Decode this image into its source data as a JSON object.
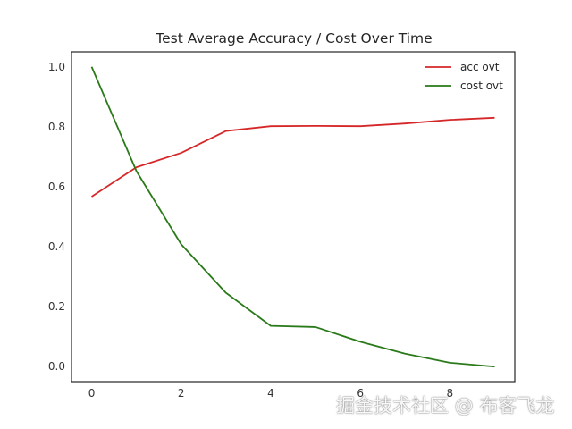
{
  "chart_data": {
    "type": "line",
    "title": "Test Average Accuracy / Cost Over Time",
    "xlabel": "",
    "ylabel": "",
    "x": [
      0,
      1,
      2,
      3,
      4,
      5,
      6,
      7,
      8,
      9
    ],
    "series": [
      {
        "name": "acc ovt",
        "color": "#d62728",
        "values": [
          0.567,
          0.665,
          0.713,
          0.786,
          0.802,
          0.803,
          0.802,
          0.811,
          0.823,
          0.83
        ]
      },
      {
        "name": "cost ovt",
        "color": "#2a7a1a",
        "values": [
          1.0,
          0.652,
          0.408,
          0.246,
          0.136,
          0.132,
          0.083,
          0.043,
          0.013,
          0.0
        ]
      }
    ],
    "xlim": [
      -0.45,
      9.45
    ],
    "ylim": [
      -0.05,
      1.05
    ],
    "xticks": [
      0,
      2,
      4,
      6,
      8
    ],
    "yticks": [
      0.0,
      0.2,
      0.4,
      0.6,
      0.8,
      1.0
    ],
    "ytick_labels": [
      "0.0",
      "0.2",
      "0.4",
      "0.6",
      "0.8",
      "1.0"
    ],
    "grid": false,
    "legend": "top-right"
  },
  "watermark": "掘金技术社区 @ 布客飞龙"
}
